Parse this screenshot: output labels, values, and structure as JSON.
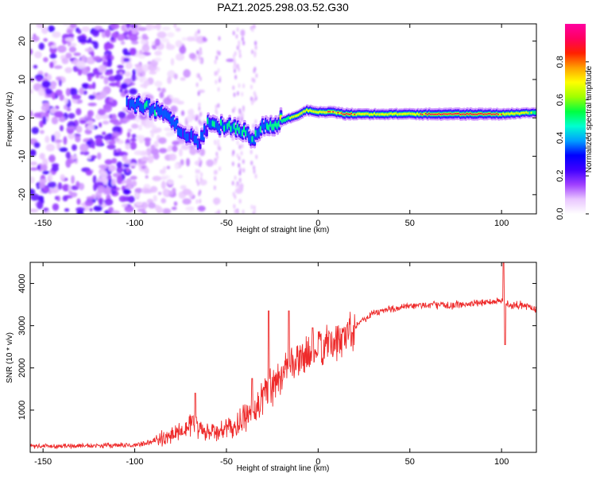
{
  "figure": {
    "title": "PAZ1.2025.298.03.52.G30"
  },
  "chart_data": [
    {
      "type": "heatmap",
      "title": "PAZ1.2025.298.03.52.G30",
      "xlabel": "Height of straight line (km)",
      "ylabel": "Frequency (Hz)",
      "xlim": [
        -157,
        119
      ],
      "ylim": [
        -25,
        24.5
      ],
      "xticks": [
        -150,
        -100,
        -50,
        0,
        50,
        100
      ],
      "yticks": [
        -20,
        -10,
        0,
        10,
        20
      ],
      "colorbar": {
        "label": "Normalized spectral amplitude",
        "range": [
          0,
          1
        ],
        "ticks": [
          "0.0",
          "0.2",
          "0.4",
          "0.6",
          "0.8"
        ],
        "tick_values": [
          0.0,
          0.2,
          0.4,
          0.6,
          0.8
        ],
        "colors": [
          "#ffffff",
          "#e9c6ff",
          "#a040ff",
          "#4000ff",
          "#0000ff",
          "#00a0ff",
          "#00ffd0",
          "#00ff40",
          "#a0ff00",
          "#ffff00",
          "#ffa000",
          "#ff2000",
          "#ff0060",
          "#ff00a0"
        ]
      },
      "ridge": [
        {
          "x": -102,
          "freq": 3.5,
          "amp": 0.35
        },
        {
          "x": -95,
          "freq": 3.0,
          "amp": 0.4
        },
        {
          "x": -88,
          "freq": 2.0,
          "amp": 0.38
        },
        {
          "x": -80,
          "freq": -1.0,
          "amp": 0.35
        },
        {
          "x": -73,
          "freq": -3.5,
          "amp": 0.35
        },
        {
          "x": -65,
          "freq": -6.5,
          "amp": 0.3
        },
        {
          "x": -60,
          "freq": -1.5,
          "amp": 0.38
        },
        {
          "x": -50,
          "freq": -2.5,
          "amp": 0.4
        },
        {
          "x": -42,
          "freq": -3.0,
          "amp": 0.45
        },
        {
          "x": -36,
          "freq": -5.5,
          "amp": 0.4
        },
        {
          "x": -30,
          "freq": -2.5,
          "amp": 0.45
        },
        {
          "x": -25,
          "freq": -1.5,
          "amp": 0.55
        },
        {
          "x": -18,
          "freq": -0.5,
          "amp": 0.6
        },
        {
          "x": -12,
          "freq": 0.5,
          "amp": 0.7
        },
        {
          "x": -6,
          "freq": 2.0,
          "amp": 0.75
        },
        {
          "x": 0,
          "freq": 1.5,
          "amp": 0.8
        },
        {
          "x": 8,
          "freq": 1.5,
          "amp": 0.85
        },
        {
          "x": 15,
          "freq": 1.0,
          "amp": 0.9
        },
        {
          "x": 30,
          "freq": 1.0,
          "amp": 0.75
        },
        {
          "x": 50,
          "freq": 1.0,
          "amp": 0.8
        },
        {
          "x": 70,
          "freq": 1.0,
          "amp": 0.95
        },
        {
          "x": 85,
          "freq": 1.0,
          "amp": 0.95
        },
        {
          "x": 100,
          "freq": 1.0,
          "amp": 0.85
        },
        {
          "x": 110,
          "freq": 1.2,
          "amp": 0.7
        },
        {
          "x": 119,
          "freq": 1.5,
          "amp": 0.6
        }
      ]
    },
    {
      "type": "line",
      "xlabel": "Height of straight line (km)",
      "ylabel": "SNR (10 * v/v)",
      "xlim": [
        -157,
        119
      ],
      "ylim": [
        0,
        4500
      ],
      "xticks": [
        -150,
        -100,
        -50,
        0,
        50,
        100
      ],
      "yticks": [
        1000,
        2000,
        3000,
        4000
      ],
      "series": [
        {
          "name": "SNR",
          "color": "#ee2b2b",
          "x": [
            -157,
            -140,
            -120,
            -100,
            -90,
            -80,
            -75,
            -68,
            -62,
            -55,
            -45,
            -35,
            -28,
            -20,
            -10,
            0,
            10,
            20,
            30,
            40,
            50,
            60,
            70,
            80,
            90,
            100,
            105,
            110,
            119
          ],
          "y": [
            150,
            150,
            160,
            170,
            250,
            400,
            550,
            700,
            450,
            500,
            600,
            1000,
            1500,
            1900,
            2200,
            2450,
            2600,
            3000,
            3300,
            3400,
            3450,
            3500,
            3480,
            3500,
            3550,
            3600,
            3450,
            3500,
            3400
          ],
          "spikes": [
            {
              "x": -67,
              "y": 1400
            },
            {
              "x": -36,
              "y": 1750
            },
            {
              "x": -27,
              "y": 3350
            },
            {
              "x": -16,
              "y": 3350
            },
            {
              "x": -3,
              "y": 2950
            },
            {
              "x": 101,
              "y": 4500
            },
            {
              "x": 102,
              "y": 2550
            }
          ]
        }
      ]
    }
  ]
}
